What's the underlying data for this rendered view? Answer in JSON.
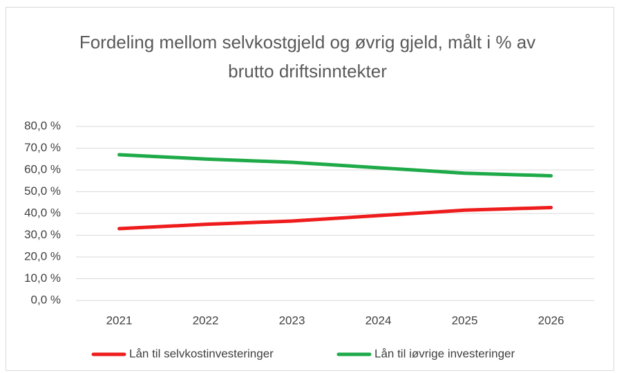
{
  "chart_data": {
    "type": "line",
    "title": "Fordeling mellom selvkostgjeld og øvrig gjeld, målt i % av brutto driftsinntekter",
    "categories": [
      "2021",
      "2022",
      "2023",
      "2024",
      "2025",
      "2026"
    ],
    "series": [
      {
        "name": "Lån til selvkostinvesteringer",
        "color": "#ee1c1c",
        "values": [
          33.0,
          35.0,
          36.5,
          39.0,
          41.5,
          42.7
        ]
      },
      {
        "name": "Lån til iøvrige investeringer",
        "color": "#1eaa48",
        "values": [
          67.0,
          65.0,
          63.5,
          61.0,
          58.5,
          57.3
        ]
      }
    ],
    "ylim": [
      0,
      80
    ],
    "yticks": [
      {
        "value": 0,
        "label": "0,0 %"
      },
      {
        "value": 10,
        "label": "10,0 %"
      },
      {
        "value": 20,
        "label": "20,0 %"
      },
      {
        "value": 30,
        "label": "30,0 %"
      },
      {
        "value": 40,
        "label": "40,0 %"
      },
      {
        "value": 50,
        "label": "50,0 %"
      },
      {
        "value": 60,
        "label": "60,0 %"
      },
      {
        "value": 70,
        "label": "70,0 %"
      },
      {
        "value": 80,
        "label": "80,0 %"
      }
    ],
    "grid": true,
    "legend": "bottom"
  }
}
